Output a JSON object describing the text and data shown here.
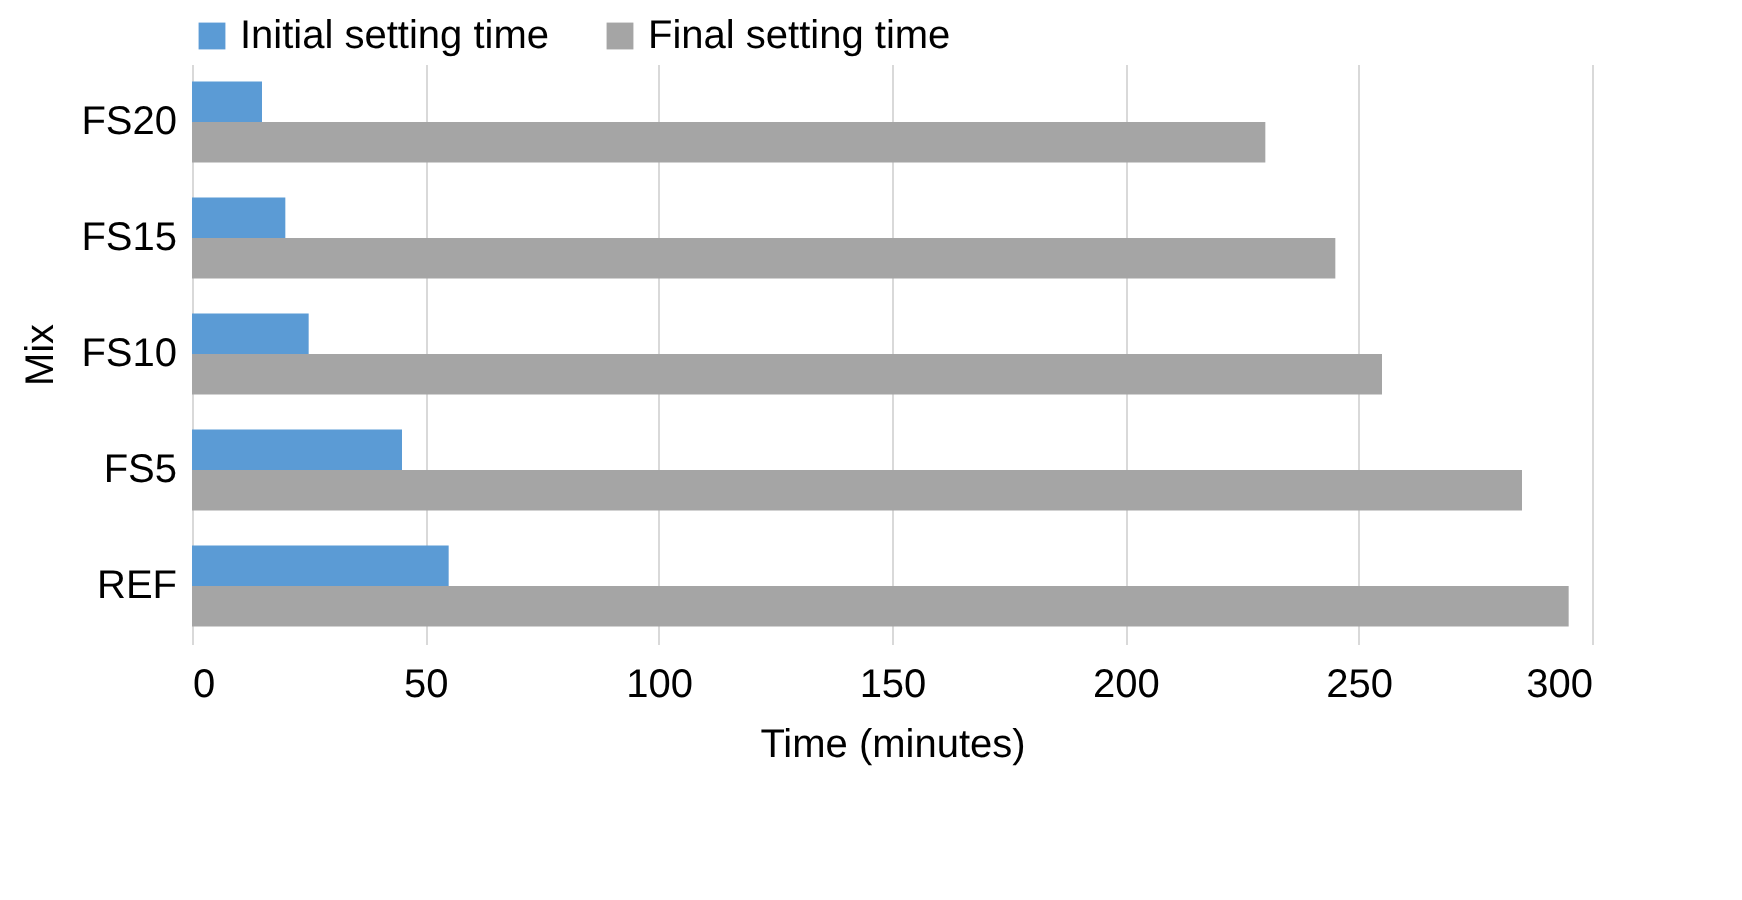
{
  "chart_data": {
    "type": "bar",
    "orientation": "horizontal",
    "xlabel": "Time (minutes)",
    "ylabel": "Mix",
    "categories": [
      "FS20",
      "FS15",
      "FS10",
      "FS5",
      "REF"
    ],
    "series": [
      {
        "name": "Initial setting time",
        "color": "#5b9bd5",
        "values": [
          15,
          20,
          25,
          45,
          55
        ]
      },
      {
        "name": "Final setting time",
        "color": "#a5a5a5",
        "values": [
          230,
          245,
          255,
          285,
          295
        ]
      }
    ],
    "xlim": [
      0,
      300
    ],
    "xticks": [
      0,
      50,
      100,
      150,
      200,
      250,
      300
    ],
    "grid": "x",
    "legend": "top"
  }
}
